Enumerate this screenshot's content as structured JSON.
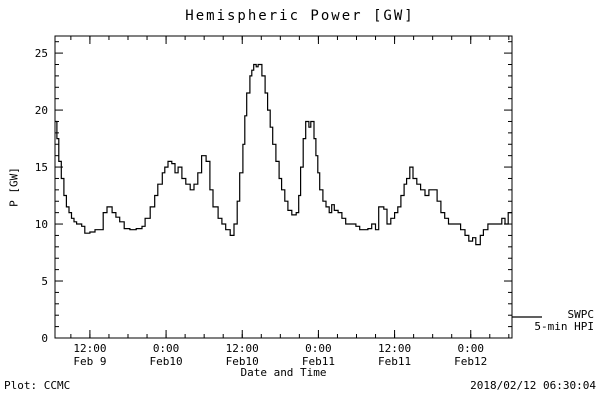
{
  "title": "Hemispheric Power [GW]",
  "footer": {
    "left": "Plot: CCMC",
    "right": "2018/02/12 06:30:04"
  },
  "legend": {
    "series": "SWPC",
    "description": "5-min HPI"
  },
  "chart_data": {
    "type": "line",
    "step": true,
    "title": "Hemispheric Power [GW]",
    "xlabel": "Date and Time",
    "ylabel": "P [GW]",
    "ylim": [
      0,
      26.5
    ],
    "y_ticks": [
      0,
      5,
      10,
      15,
      20,
      25
    ],
    "y_minor_step": 1,
    "xlim_hours": [
      0,
      72
    ],
    "x_minor_step": 3,
    "x_minor_start": 2.5,
    "grid": false,
    "legend_position": "right-outside",
    "x_ticks": [
      {
        "t": 5.5,
        "time": "12:00",
        "date": "Feb 9"
      },
      {
        "t": 17.5,
        "time": "0:00",
        "date": "Feb10"
      },
      {
        "t": 29.5,
        "time": "12:00",
        "date": "Feb10"
      },
      {
        "t": 41.5,
        "time": "0:00",
        "date": "Feb11"
      },
      {
        "t": 53.5,
        "time": "12:00",
        "date": "Feb11"
      },
      {
        "t": 65.5,
        "time": "0:00",
        "date": "Feb12"
      }
    ],
    "series": [
      {
        "name": "SWPC 5-min HPI",
        "color": "#000000",
        "points": [
          [
            0,
            19
          ],
          [
            0.3,
            17.5
          ],
          [
            0.6,
            15.5
          ],
          [
            1,
            14
          ],
          [
            1.4,
            12.5
          ],
          [
            1.8,
            11.5
          ],
          [
            2.2,
            11
          ],
          [
            2.6,
            10.5
          ],
          [
            3,
            10.2
          ],
          [
            3.4,
            10
          ],
          [
            4.2,
            9.8
          ],
          [
            4.7,
            9.2
          ],
          [
            5.5,
            9.3
          ],
          [
            6.3,
            9.5
          ],
          [
            7,
            9.5
          ],
          [
            7.6,
            11
          ],
          [
            8.2,
            11.5
          ],
          [
            9,
            11
          ],
          [
            9.6,
            10.6
          ],
          [
            10.2,
            10.2
          ],
          [
            10.9,
            9.6
          ],
          [
            11.8,
            9.5
          ],
          [
            12.8,
            9.6
          ],
          [
            13.7,
            9.8
          ],
          [
            14.2,
            10.5
          ],
          [
            15,
            11.5
          ],
          [
            15.7,
            12.5
          ],
          [
            16.2,
            13.5
          ],
          [
            16.9,
            14.5
          ],
          [
            17.3,
            15
          ],
          [
            17.8,
            15.5
          ],
          [
            18.4,
            15.3
          ],
          [
            18.9,
            14.5
          ],
          [
            19.4,
            15
          ],
          [
            20,
            14
          ],
          [
            20.6,
            13.5
          ],
          [
            21.3,
            13
          ],
          [
            21.9,
            13.5
          ],
          [
            22.5,
            14.5
          ],
          [
            23.1,
            16
          ],
          [
            23.8,
            15.5
          ],
          [
            24.4,
            13
          ],
          [
            24.9,
            11.5
          ],
          [
            25.7,
            10.5
          ],
          [
            26.3,
            10
          ],
          [
            26.9,
            9.5
          ],
          [
            27.6,
            9
          ],
          [
            28.2,
            10
          ],
          [
            28.7,
            12
          ],
          [
            29.1,
            14.5
          ],
          [
            29.6,
            17
          ],
          [
            29.9,
            19.5
          ],
          [
            30.2,
            21.5
          ],
          [
            30.7,
            23
          ],
          [
            31,
            23.5
          ],
          [
            31.3,
            24
          ],
          [
            31.7,
            23.8
          ],
          [
            32,
            24
          ],
          [
            32.6,
            23
          ],
          [
            33.1,
            21.5
          ],
          [
            33.5,
            20
          ],
          [
            33.9,
            18.5
          ],
          [
            34.3,
            17
          ],
          [
            34.8,
            15.5
          ],
          [
            35.3,
            14
          ],
          [
            35.7,
            13
          ],
          [
            36.2,
            12
          ],
          [
            36.7,
            11.2
          ],
          [
            37.3,
            10.8
          ],
          [
            38,
            11
          ],
          [
            38.4,
            12.5
          ],
          [
            38.7,
            15
          ],
          [
            39.1,
            17.5
          ],
          [
            39.5,
            19
          ],
          [
            40,
            18.5
          ],
          [
            40.3,
            19
          ],
          [
            40.8,
            17.5
          ],
          [
            41.1,
            16
          ],
          [
            41.4,
            14.5
          ],
          [
            41.7,
            13
          ],
          [
            42.2,
            12
          ],
          [
            42.7,
            11.5
          ],
          [
            43.2,
            11
          ],
          [
            43.6,
            11.7
          ],
          [
            44,
            11.2
          ],
          [
            44.6,
            11
          ],
          [
            45.2,
            10.5
          ],
          [
            45.8,
            10
          ],
          [
            46.6,
            10
          ],
          [
            47.4,
            9.8
          ],
          [
            48,
            9.5
          ],
          [
            48.7,
            9.5
          ],
          [
            49.3,
            9.6
          ],
          [
            49.9,
            10
          ],
          [
            50.5,
            9.5
          ],
          [
            51,
            11.5
          ],
          [
            51.8,
            11.3
          ],
          [
            52.3,
            10
          ],
          [
            52.9,
            10.5
          ],
          [
            53.5,
            11
          ],
          [
            54,
            11.5
          ],
          [
            54.5,
            12.5
          ],
          [
            55,
            13.5
          ],
          [
            55.4,
            14
          ],
          [
            55.9,
            15
          ],
          [
            56.4,
            14
          ],
          [
            57,
            13.5
          ],
          [
            57.6,
            13
          ],
          [
            58.3,
            12.5
          ],
          [
            58.9,
            13
          ],
          [
            59.7,
            13
          ],
          [
            60.2,
            12
          ],
          [
            60.8,
            11
          ],
          [
            61.4,
            10.5
          ],
          [
            62,
            10
          ],
          [
            62.8,
            10
          ],
          [
            63.5,
            10
          ],
          [
            63.9,
            9.5
          ],
          [
            64.6,
            9
          ],
          [
            65.2,
            8.5
          ],
          [
            65.8,
            8.8
          ],
          [
            66.3,
            8.2
          ],
          [
            67,
            9
          ],
          [
            67.5,
            9.5
          ],
          [
            68.2,
            10
          ],
          [
            69,
            10
          ],
          [
            69.8,
            10
          ],
          [
            70.4,
            10.5
          ],
          [
            70.9,
            10
          ],
          [
            71.4,
            11
          ],
          [
            72,
            11
          ]
        ]
      }
    ]
  }
}
